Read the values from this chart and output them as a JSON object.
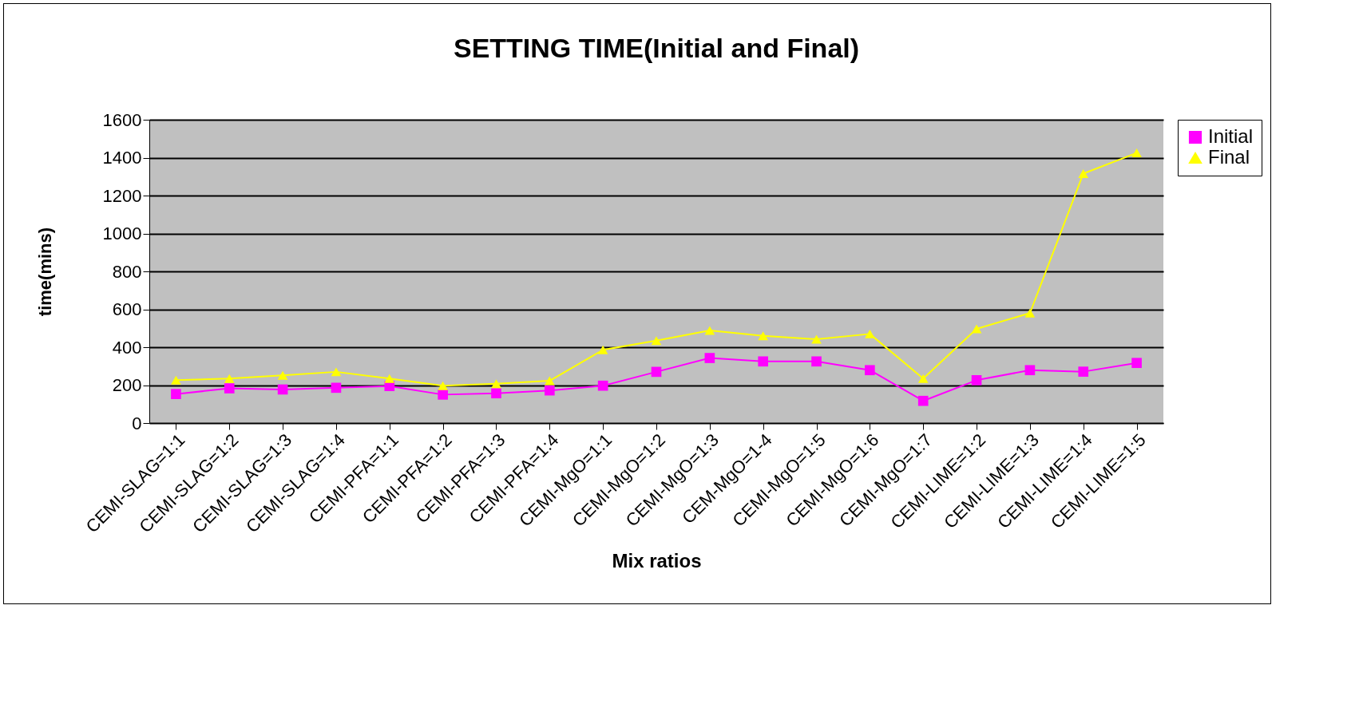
{
  "chart_data": {
    "type": "line",
    "title": "SETTING TIME(Initial and Final)",
    "xlabel": "Mix ratios",
    "ylabel": "time(mins)",
    "categories": [
      "CEMI-SLAG=1:1",
      "CEMI-SLAG=1:2",
      "CEMI-SLAG=1:3",
      "CEMI-SLAG=1:4",
      "CEMI-PFA=1:1",
      "CEMI-PFA=1:2",
      "CEMI-PFA=1:3",
      "CEMI-PFA=1:4",
      "CEMI-MgO=1:1",
      "CEMI-MgO=1:2",
      "CEMI-MgO=1:3",
      "CEM-MgO=1-4",
      "CEMI-MgO=1:5",
      "CEMI-MgO=1:6",
      "CEMI-MgO=1:7",
      "CEMI-LIME=1:2",
      "CEMI-LIME=1:3",
      "CEMI-LIME=1:4",
      "CEMI-LIME=1:5"
    ],
    "series": [
      {
        "name": "Initial",
        "color": "#ff00ff",
        "marker": "square",
        "values": [
          153,
          183,
          177,
          186,
          195,
          150,
          157,
          172,
          197,
          270,
          343,
          325,
          325,
          279,
          117,
          226,
          279,
          271,
          317
        ]
      },
      {
        "name": "Final",
        "color": "#ffff00",
        "marker": "triangle",
        "values": [
          226,
          235,
          252,
          270,
          235,
          197,
          207,
          223,
          386,
          435,
          488,
          460,
          442,
          470,
          235,
          497,
          580,
          1316,
          1425
        ]
      }
    ],
    "ylim": [
      0,
      1600
    ],
    "yticks": [
      0,
      200,
      400,
      600,
      800,
      1000,
      1200,
      1400,
      1600
    ],
    "grid": "y",
    "legend": "right"
  }
}
